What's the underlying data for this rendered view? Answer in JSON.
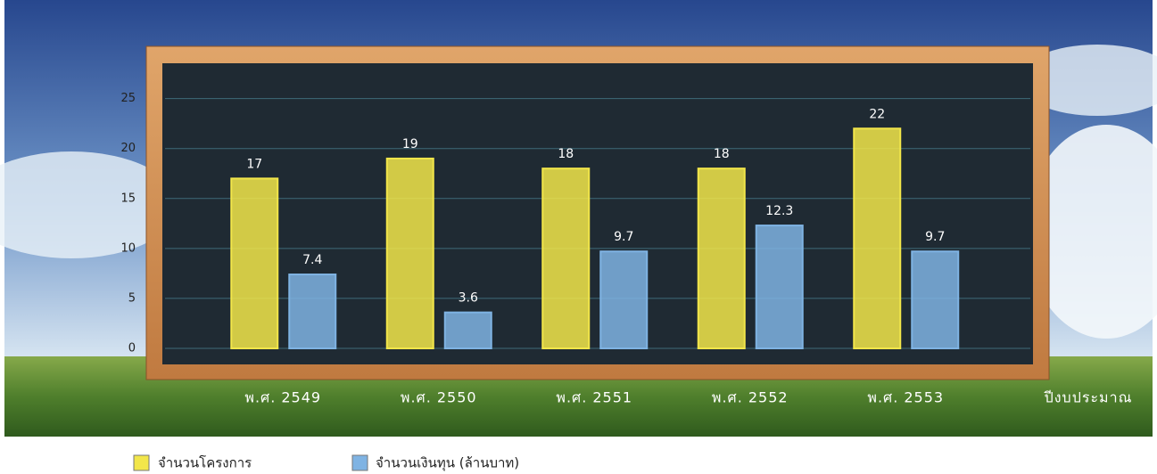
{
  "chart_data": {
    "type": "bar",
    "categories": [
      "พ.ศ. 2549",
      "พ.ศ. 2550",
      "พ.ศ. 2551",
      "พ.ศ. 2552",
      "พ.ศ. 2553"
    ],
    "x_label": "ปีงบประมาณ",
    "series": [
      {
        "name": "จำนวนโครงการ",
        "color": "#f2e64a",
        "values": [
          17,
          19,
          18,
          18,
          22
        ]
      },
      {
        "name": "จำนวนเงินทุน (ล้านบาท)",
        "color": "#7fb3e3",
        "values": [
          7.4,
          3.6,
          9.7,
          12.3,
          9.7
        ]
      }
    ],
    "ylim": [
      0,
      28
    ],
    "yticks": [
      0,
      5,
      10,
      15,
      20,
      25
    ],
    "grid": true
  }
}
